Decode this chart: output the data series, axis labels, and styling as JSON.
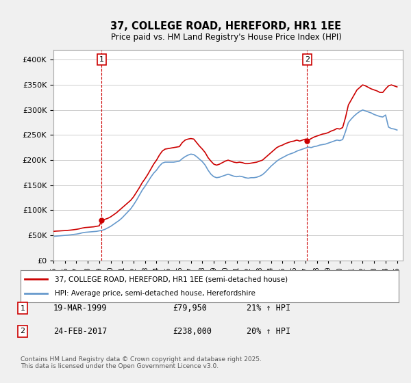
{
  "title": "37, COLLEGE ROAD, HEREFORD, HR1 1EE",
  "subtitle": "Price paid vs. HM Land Registry's House Price Index (HPI)",
  "ylabel_values": [
    "£0",
    "£50K",
    "£100K",
    "£150K",
    "£200K",
    "£250K",
    "£300K",
    "£350K",
    "£400K"
  ],
  "y_ticks": [
    0,
    50000,
    100000,
    150000,
    200000,
    250000,
    300000,
    350000,
    400000
  ],
  "ylim": [
    0,
    420000
  ],
  "xlim_start": 1995.0,
  "xlim_end": 2025.5,
  "red_color": "#cc0000",
  "blue_color": "#6699cc",
  "marker1_x": 1999.21,
  "marker1_y": 79950,
  "marker2_x": 2017.15,
  "marker2_y": 238000,
  "annotation1_label": "1",
  "annotation2_label": "2",
  "legend_line1": "37, COLLEGE ROAD, HEREFORD, HR1 1EE (semi-detached house)",
  "legend_line2": "HPI: Average price, semi-detached house, Herefordshire",
  "table_row1": [
    "1",
    "19-MAR-1999",
    "£79,950",
    "21% ↑ HPI"
  ],
  "table_row2": [
    "2",
    "24-FEB-2017",
    "£238,000",
    "20% ↑ HPI"
  ],
  "footnote": "Contains HM Land Registry data © Crown copyright and database right 2025.\nThis data is licensed under the Open Government Licence v3.0.",
  "background_color": "#f0f0f0",
  "plot_background": "#ffffff",
  "grid_color": "#cccccc",
  "red_data": {
    "x": [
      1995.0,
      1995.25,
      1995.5,
      1995.75,
      1996.0,
      1996.25,
      1996.5,
      1996.75,
      1997.0,
      1997.25,
      1997.5,
      1997.75,
      1998.0,
      1998.25,
      1998.5,
      1998.75,
      1999.0,
      1999.21,
      1999.5,
      1999.75,
      2000.0,
      2000.25,
      2000.5,
      2000.75,
      2001.0,
      2001.25,
      2001.5,
      2001.75,
      2002.0,
      2002.25,
      2002.5,
      2002.75,
      2003.0,
      2003.25,
      2003.5,
      2003.75,
      2004.0,
      2004.25,
      2004.5,
      2004.75,
      2005.0,
      2005.25,
      2005.5,
      2005.75,
      2006.0,
      2006.25,
      2006.5,
      2006.75,
      2007.0,
      2007.25,
      2007.5,
      2007.75,
      2008.0,
      2008.25,
      2008.5,
      2008.75,
      2009.0,
      2009.25,
      2009.5,
      2009.75,
      2010.0,
      2010.25,
      2010.5,
      2010.75,
      2011.0,
      2011.25,
      2011.5,
      2011.75,
      2012.0,
      2012.25,
      2012.5,
      2012.75,
      2013.0,
      2013.25,
      2013.5,
      2013.75,
      2014.0,
      2014.25,
      2014.5,
      2014.75,
      2015.0,
      2015.25,
      2015.5,
      2015.75,
      2016.0,
      2016.25,
      2016.5,
      2016.75,
      2017.0,
      2017.15,
      2017.5,
      2017.75,
      2018.0,
      2018.25,
      2018.5,
      2018.75,
      2019.0,
      2019.25,
      2019.5,
      2019.75,
      2020.0,
      2020.25,
      2020.5,
      2020.75,
      2021.0,
      2021.25,
      2021.5,
      2021.75,
      2022.0,
      2022.25,
      2022.5,
      2022.75,
      2023.0,
      2023.25,
      2023.5,
      2023.75,
      2024.0,
      2024.25,
      2024.5,
      2024.75,
      2025.0
    ],
    "y": [
      58000,
      58500,
      58800,
      59200,
      59500,
      60000,
      60500,
      61200,
      62000,
      63000,
      64500,
      65500,
      66000,
      66500,
      67000,
      68000,
      69000,
      79950,
      82000,
      84000,
      87000,
      91000,
      95000,
      100000,
      105000,
      110000,
      115000,
      120000,
      127000,
      136000,
      145000,
      155000,
      163000,
      172000,
      182000,
      192000,
      200000,
      210000,
      218000,
      222000,
      223000,
      224000,
      225000,
      226000,
      227000,
      235000,
      240000,
      242000,
      243000,
      242000,
      235000,
      228000,
      222000,
      215000,
      205000,
      198000,
      192000,
      190000,
      192000,
      195000,
      198000,
      200000,
      198000,
      196000,
      195000,
      196000,
      195000,
      193000,
      193000,
      194000,
      195000,
      196000,
      198000,
      200000,
      205000,
      210000,
      215000,
      220000,
      225000,
      228000,
      230000,
      233000,
      235000,
      237000,
      238000,
      240000,
      238000,
      240000,
      242000,
      238000,
      243000,
      246000,
      248000,
      250000,
      252000,
      253000,
      255000,
      258000,
      260000,
      263000,
      262000,
      265000,
      285000,
      310000,
      320000,
      330000,
      340000,
      345000,
      350000,
      348000,
      345000,
      342000,
      340000,
      338000,
      335000,
      335000,
      342000,
      348000,
      350000,
      348000,
      346000
    ]
  },
  "blue_data": {
    "x": [
      1995.0,
      1995.25,
      1995.5,
      1995.75,
      1996.0,
      1996.25,
      1996.5,
      1996.75,
      1997.0,
      1997.25,
      1997.5,
      1997.75,
      1998.0,
      1998.25,
      1998.5,
      1998.75,
      1999.0,
      1999.25,
      1999.5,
      1999.75,
      2000.0,
      2000.25,
      2000.5,
      2000.75,
      2001.0,
      2001.25,
      2001.5,
      2001.75,
      2002.0,
      2002.25,
      2002.5,
      2002.75,
      2003.0,
      2003.25,
      2003.5,
      2003.75,
      2004.0,
      2004.25,
      2004.5,
      2004.75,
      2005.0,
      2005.25,
      2005.5,
      2005.75,
      2006.0,
      2006.25,
      2006.5,
      2006.75,
      2007.0,
      2007.25,
      2007.5,
      2007.75,
      2008.0,
      2008.25,
      2008.5,
      2008.75,
      2009.0,
      2009.25,
      2009.5,
      2009.75,
      2010.0,
      2010.25,
      2010.5,
      2010.75,
      2011.0,
      2011.25,
      2011.5,
      2011.75,
      2012.0,
      2012.25,
      2012.5,
      2012.75,
      2013.0,
      2013.25,
      2013.5,
      2013.75,
      2014.0,
      2014.25,
      2014.5,
      2014.75,
      2015.0,
      2015.25,
      2015.5,
      2015.75,
      2016.0,
      2016.25,
      2016.5,
      2016.75,
      2017.0,
      2017.25,
      2017.5,
      2017.75,
      2018.0,
      2018.25,
      2018.5,
      2018.75,
      2019.0,
      2019.25,
      2019.5,
      2019.75,
      2020.0,
      2020.25,
      2020.5,
      2020.75,
      2021.0,
      2021.25,
      2021.5,
      2021.75,
      2022.0,
      2022.25,
      2022.5,
      2022.75,
      2023.0,
      2023.25,
      2023.5,
      2023.75,
      2024.0,
      2024.25,
      2024.5,
      2024.75,
      2025.0
    ],
    "y": [
      48000,
      48500,
      49000,
      49500,
      50000,
      50500,
      51000,
      51800,
      52500,
      53500,
      55000,
      56000,
      56500,
      57000,
      57500,
      58000,
      59000,
      60000,
      62000,
      65000,
      68000,
      72000,
      76000,
      80000,
      85000,
      91000,
      97000,
      103000,
      111000,
      120000,
      130000,
      140000,
      148000,
      157000,
      166000,
      174000,
      180000,
      188000,
      194000,
      196000,
      196000,
      196000,
      196000,
      197000,
      198000,
      203000,
      207000,
      210000,
      212000,
      211000,
      207000,
      202000,
      197000,
      190000,
      180000,
      172000,
      167000,
      165000,
      166000,
      168000,
      170000,
      172000,
      170000,
      168000,
      167000,
      168000,
      167000,
      165000,
      164000,
      165000,
      165000,
      166000,
      168000,
      171000,
      176000,
      182000,
      188000,
      193000,
      198000,
      202000,
      205000,
      208000,
      211000,
      213000,
      215000,
      218000,
      220000,
      222000,
      224000,
      226000,
      225000,
      227000,
      228000,
      230000,
      231000,
      232000,
      234000,
      236000,
      238000,
      240000,
      239000,
      241000,
      257000,
      275000,
      282000,
      288000,
      293000,
      297000,
      300000,
      298000,
      296000,
      294000,
      291000,
      289000,
      287000,
      286000,
      290000,
      266000,
      263000,
      262000,
      260000
    ]
  }
}
